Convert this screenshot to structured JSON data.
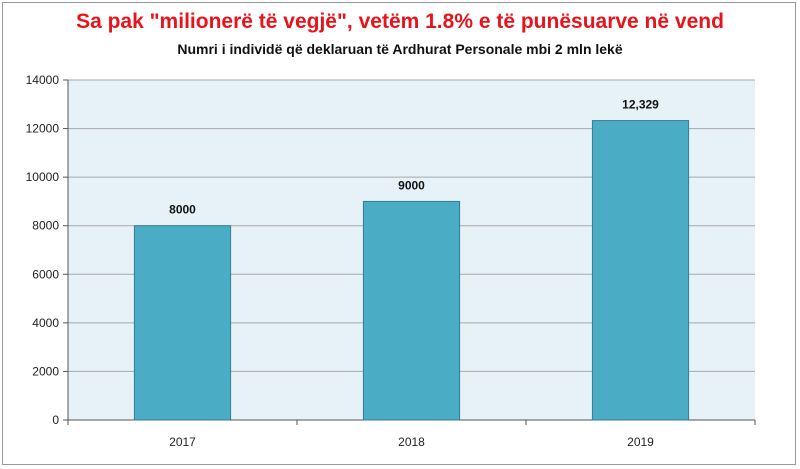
{
  "chart_data": {
    "type": "bar",
    "title": "Sa pak \"milionerë të vegjë\", vetëm 1.8% e të punësuarve  në vend",
    "subtitle": "Numri i individë që deklaruan të Ardhurat Personale mbi 2 mln lekë",
    "categories": [
      "2017",
      "2018",
      "2019"
    ],
    "values": [
      8000,
      9000,
      12329
    ],
    "data_labels": [
      "8000",
      "9000",
      "12,329"
    ],
    "ylim": [
      0,
      14000
    ],
    "yticks": [
      0,
      2000,
      4000,
      6000,
      8000,
      10000,
      12000,
      14000
    ],
    "ytick_labels": [
      "0",
      "2000",
      "4000",
      "6000",
      "8000",
      "10000",
      "12000",
      "14000"
    ],
    "xlabel": "",
    "ylabel": "",
    "grid": true,
    "legend": "none",
    "colors": {
      "bar": "#4bacc6",
      "bar_border": "#357d91",
      "plot_bg": "#e6f2f8",
      "grid": "#a8a8a8",
      "title": "#e8141b"
    }
  }
}
